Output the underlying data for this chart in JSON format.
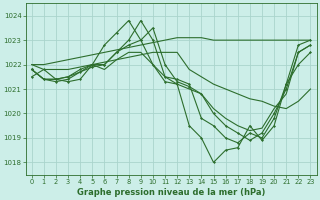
{
  "title": "Graphe pression niveau de la mer (hPa)",
  "bg_color": "#cceee8",
  "grid_color": "#aad4cc",
  "line_color": "#2d6e2d",
  "xlim": [
    -0.5,
    23.5
  ],
  "ylim": [
    1017.5,
    1024.5
  ],
  "xticks": [
    0,
    1,
    2,
    3,
    4,
    5,
    6,
    7,
    8,
    9,
    10,
    11,
    12,
    13,
    14,
    15,
    16,
    17,
    18,
    19,
    20,
    21,
    22,
    23
  ],
  "yticks": [
    1018,
    1019,
    1020,
    1021,
    1022,
    1023,
    1024
  ],
  "series_with_markers": [
    {
      "y": [
        1021.5,
        1021.8,
        1021.4,
        1021.3,
        1021.4,
        1022.0,
        1022.8,
        1023.3,
        1023.8,
        1023.0,
        1022.0,
        1021.3,
        1021.2,
        1019.5,
        1019.0,
        1018.0,
        1018.5,
        1018.6,
        1019.5,
        1018.9,
        1019.5,
        1021.2,
        1022.8,
        1023.0
      ],
      "has_markers": true
    },
    {
      "y": [
        1021.8,
        1021.4,
        1021.3,
        1021.4,
        1021.7,
        1021.9,
        1022.0,
        1022.5,
        1023.0,
        1023.8,
        1023.0,
        1021.5,
        1021.4,
        1021.2,
        1019.8,
        1019.5,
        1019.0,
        1018.8,
        1019.2,
        1019.0,
        1019.8,
        1021.2,
        1022.0,
        1022.5
      ],
      "has_markers": true
    },
    {
      "y": [
        1021.8,
        1021.4,
        1021.4,
        1021.5,
        1021.8,
        1022.0,
        1022.0,
        1022.5,
        1022.8,
        1023.0,
        1023.5,
        1022.0,
        1021.3,
        1021.1,
        1020.8,
        1020.0,
        1019.5,
        1019.2,
        1018.9,
        1019.2,
        1020.0,
        1021.0,
        1022.5,
        1022.8
      ],
      "has_markers": true
    },
    {
      "y": [
        1021.8,
        1021.4,
        1021.4,
        1021.5,
        1021.7,
        1022.0,
        1021.8,
        1022.2,
        1022.5,
        1022.5,
        1022.0,
        1021.5,
        1021.2,
        1021.0,
        1020.8,
        1020.2,
        1019.8,
        1019.5,
        1019.3,
        1019.4,
        1020.2,
        1020.8,
        1022.5,
        1022.8
      ],
      "has_markers": false
    }
  ],
  "smooth_lines": [
    [
      1022.0,
      1021.8,
      1021.8,
      1021.8,
      1021.9,
      1022.0,
      1022.1,
      1022.2,
      1022.3,
      1022.4,
      1022.5,
      1022.5,
      1022.5,
      1021.8,
      1021.5,
      1021.2,
      1021.0,
      1020.8,
      1020.6,
      1020.5,
      1020.3,
      1020.2,
      1020.5,
      1021.0
    ],
    [
      1022.0,
      1022.0,
      1022.1,
      1022.2,
      1022.3,
      1022.4,
      1022.5,
      1022.6,
      1022.7,
      1022.8,
      1022.9,
      1023.0,
      1023.1,
      1023.1,
      1023.1,
      1023.0,
      1023.0,
      1023.0,
      1023.0,
      1023.0,
      1023.0,
      1023.0,
      1023.0,
      1023.0
    ]
  ]
}
